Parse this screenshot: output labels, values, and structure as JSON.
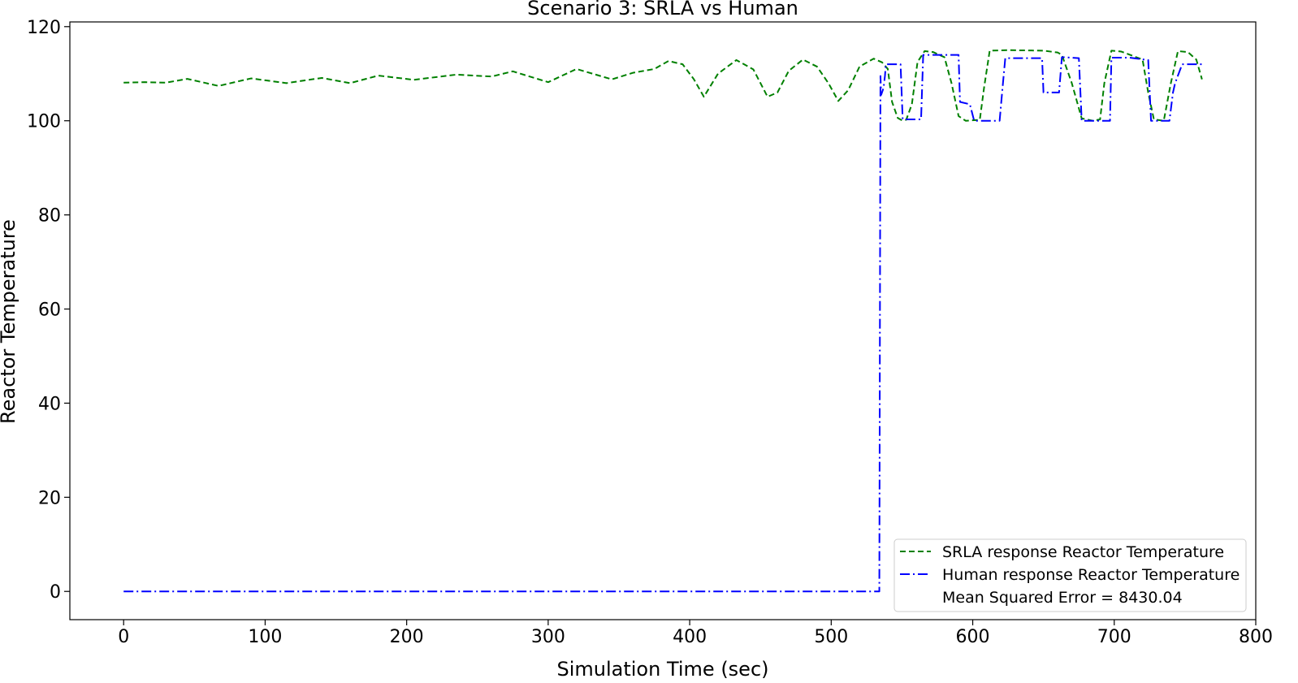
{
  "chart_data": {
    "type": "line",
    "title": "Scenario 3: SRLA vs Human",
    "xlabel": "Simulation Time (sec)",
    "ylabel": "Reactor Temperature",
    "xlim": [
      -38,
      800
    ],
    "ylim": [
      -6,
      121
    ],
    "xticks": [
      0,
      100,
      200,
      300,
      400,
      500,
      600,
      700,
      800
    ],
    "yticks": [
      0,
      20,
      40,
      60,
      80,
      100,
      120
    ],
    "grid": false,
    "legend_position": "lower-right",
    "annotation": "Mean Squared Error = 8430.04",
    "series": [
      {
        "name": "SRLA response Reactor Temperature",
        "color": "#008000",
        "style": "dashed",
        "x": [
          0,
          15,
          30,
          45,
          67,
          90,
          115,
          140,
          160,
          180,
          205,
          235,
          260,
          275,
          300,
          320,
          345,
          360,
          375,
          385,
          395,
          403,
          410,
          420,
          433,
          445,
          455,
          462,
          470,
          480,
          490,
          498,
          505,
          512,
          520,
          530,
          536,
          540,
          543,
          547,
          550,
          553,
          557,
          561,
          566,
          572,
          580,
          585,
          590,
          595,
          605,
          608,
          612,
          625,
          650,
          660,
          663,
          670,
          677,
          685,
          690,
          693,
          698,
          705,
          720,
          724,
          728,
          735,
          740,
          745,
          752,
          758,
          762
        ],
        "y": [
          108.1,
          108.2,
          108.1,
          108.9,
          107.4,
          109.0,
          108.0,
          109.1,
          108.0,
          109.6,
          108.7,
          109.8,
          109.4,
          110.5,
          108.2,
          111.0,
          108.8,
          110.2,
          111.0,
          112.7,
          112.0,
          108.8,
          105.1,
          110.0,
          112.9,
          110.9,
          105.1,
          106.0,
          110.6,
          113.0,
          111.5,
          108.0,
          104.2,
          106.5,
          111.5,
          113.2,
          112.4,
          111.0,
          104.0,
          100.6,
          100.1,
          100.2,
          103.5,
          112.5,
          114.8,
          114.6,
          113.5,
          108.0,
          101.0,
          100.0,
          100.2,
          107.0,
          114.9,
          115.0,
          114.9,
          114.5,
          114.0,
          108.0,
          100.5,
          100.0,
          100.3,
          108.0,
          114.9,
          114.7,
          113.0,
          106.0,
          100.3,
          100.0,
          108.0,
          114.8,
          114.6,
          113.0,
          108.8
        ]
      },
      {
        "name": "Human response Reactor Temperature",
        "color": "#0000ff",
        "style": "dashdot",
        "x": [
          0,
          534,
          534.8,
          535.3,
          537,
          538,
          538.6,
          540,
          549,
          550.5,
          558,
          563.5,
          565,
          577,
          590,
          591,
          598,
          601,
          619,
          621,
          623,
          638,
          649,
          650,
          661,
          663,
          664.5,
          675,
          677,
          678,
          695,
          697,
          698,
          711,
          724,
          726,
          739,
          741.5,
          743,
          748,
          758,
          762
        ],
        "y": [
          0,
          0,
          109.5,
          105.5,
          107.0,
          109.6,
          112.0,
          112.0,
          112.0,
          100.3,
          100.3,
          100.3,
          114.0,
          114.0,
          114.0,
          104.0,
          103.5,
          100.0,
          100.0,
          106.8,
          113.3,
          113.3,
          113.3,
          106.0,
          106.0,
          113.5,
          113.5,
          113.3,
          100.0,
          100.0,
          100.0,
          100.0,
          113.4,
          113.4,
          112.9,
          100.0,
          100.0,
          106.0,
          108.0,
          112.0,
          112.0,
          112.0
        ]
      }
    ]
  }
}
